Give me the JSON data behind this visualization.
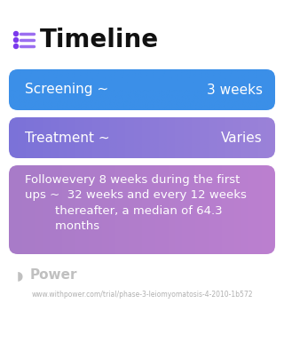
{
  "title": "Timeline",
  "background_color": "#ffffff",
  "title_color": "#111111",
  "title_fontsize": 20,
  "title_fontweight": "bold",
  "icon_color": "#7c3aed",
  "icon_line_color": "#9b6ef0",
  "cards": [
    {
      "label_left": "Screening ~",
      "label_right": "3 weeks",
      "color_left": "#3b8fe8",
      "color_right": "#3b8fe8",
      "text_color": "#ffffff",
      "fontsize": 11,
      "multiline": false
    },
    {
      "label_left": "Treatment ~",
      "label_right": "Varies",
      "color_left": "#7b72d8",
      "color_right": "#9b82d8",
      "text_color": "#ffffff",
      "fontsize": 11,
      "multiline": false
    },
    {
      "label_left": "Followevery 8 weeks during the first\nups ~  32 weeks and every 12 weeks\n        thereafter, a median of 64.3\n        months",
      "label_right": "",
      "color_left": "#a87bc8",
      "color_right": "#bc80d0",
      "text_color": "#ffffff",
      "fontsize": 9.5,
      "multiline": true
    }
  ],
  "footer_logo_text": "Power",
  "footer_url": "www.withpower.com/trial/phase-3-leiomyomatosis-4-2010-1b572",
  "footer_color": "#b0b0b0",
  "footer_fontsize": 5.5
}
